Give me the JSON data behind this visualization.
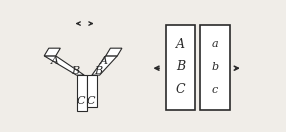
{
  "bg_color": "#f0ede8",
  "line_color": "#2a2a2a",
  "white": "#ffffff",
  "label_A_left": "A",
  "label_B_left": "B",
  "label_C_left1": "C",
  "label_C_left2": "C",
  "label_A_right": "A",
  "label_B_right": "B",
  "label_ABC_box1": [
    "A",
    "B",
    "C"
  ],
  "label_abc_box2": [
    "a",
    "b",
    "c"
  ],
  "font_size_main": 8,
  "font_size_small": 7,
  "arrow_color": "#2a2a2a"
}
